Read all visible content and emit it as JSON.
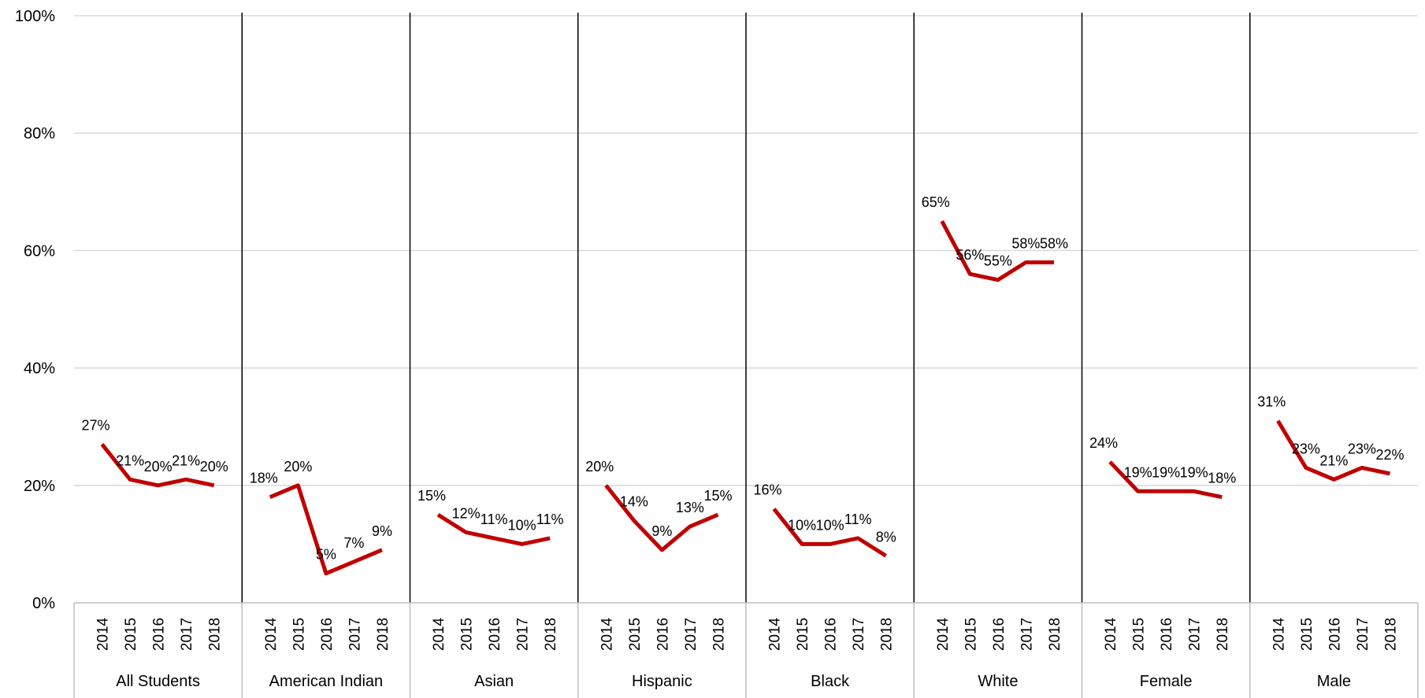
{
  "chart_data": {
    "type": "line",
    "title": "",
    "xlabel": "",
    "ylabel": "",
    "ylim": [
      0,
      100
    ],
    "y_ticks": [
      "0%",
      "20%",
      "40%",
      "60%",
      "80%",
      "100%"
    ],
    "y_tick_values": [
      0,
      20,
      40,
      60,
      80,
      100
    ],
    "grid": "horizontal",
    "legend": "none",
    "line_color": "#c00000",
    "years": [
      "2014",
      "2015",
      "2016",
      "2017",
      "2018"
    ],
    "groups": [
      {
        "name": "All Students",
        "values": [
          27,
          21,
          20,
          21,
          20
        ],
        "labels": [
          "27%",
          "21%",
          "20%",
          "21%",
          "20%"
        ]
      },
      {
        "name": "American Indian",
        "values": [
          18,
          20,
          5,
          7,
          9
        ],
        "labels": [
          "18%",
          "20%",
          "5%",
          "7%",
          "9%"
        ]
      },
      {
        "name": "Asian",
        "values": [
          15,
          12,
          11,
          10,
          11
        ],
        "labels": [
          "15%",
          "12%",
          "11%",
          "10%",
          "11%"
        ]
      },
      {
        "name": "Hispanic",
        "values": [
          20,
          14,
          9,
          13,
          15
        ],
        "labels": [
          "20%",
          "14%",
          "9%",
          "13%",
          "15%"
        ]
      },
      {
        "name": "Black",
        "values": [
          16,
          10,
          10,
          11,
          8
        ],
        "labels": [
          "16%",
          "10%",
          "10%",
          "11%",
          "8%"
        ]
      },
      {
        "name": "White",
        "values": [
          65,
          56,
          55,
          58,
          58
        ],
        "labels": [
          "65%",
          "56%",
          "55%",
          "58%",
          "58%"
        ]
      },
      {
        "name": "Female",
        "values": [
          24,
          19,
          19,
          19,
          18
        ],
        "labels": [
          "24%",
          "19%",
          "19%",
          "19%",
          "18%"
        ]
      },
      {
        "name": "Male",
        "values": [
          31,
          23,
          21,
          23,
          22
        ],
        "labels": [
          "31%",
          "23%",
          "21%",
          "23%",
          "22%"
        ]
      }
    ]
  }
}
